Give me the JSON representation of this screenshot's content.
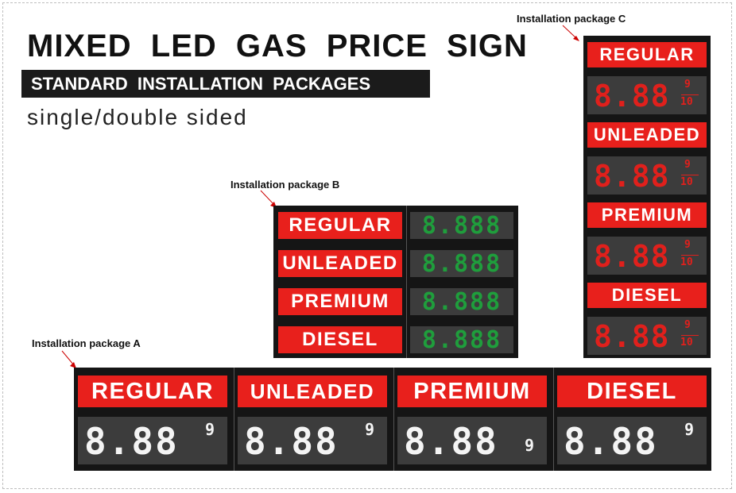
{
  "title": "MIXED LED GAS PRICE SIGN",
  "subtitle": "STANDARD INSTALLATION PACKAGES",
  "sided": "single/double sided",
  "packages": {
    "a": {
      "label": "Installation package A",
      "panels": [
        {
          "name": "REGULAR",
          "price": "8.88",
          "fraction": "9"
        },
        {
          "name": "UNLEADED",
          "price": "8.88",
          "fraction": "9"
        },
        {
          "name": "PREMIUM",
          "price": "8.88",
          "fraction": "9"
        },
        {
          "name": "DIESEL",
          "price": "8.88",
          "fraction": "9"
        }
      ],
      "digit_color": "#f4f4f4"
    },
    "b": {
      "label": "Installation package B",
      "rows": [
        {
          "name": "REGULAR",
          "price": "8.888"
        },
        {
          "name": "UNLEADED",
          "price": "8.888"
        },
        {
          "name": "PREMIUM",
          "price": "8.888"
        },
        {
          "name": "DIESEL",
          "price": "8.888"
        }
      ],
      "digit_color": "#1f9e3c"
    },
    "c": {
      "label": "Installation package C",
      "rows": [
        {
          "name": "REGULAR",
          "price": "8.88",
          "frac_num": "9",
          "frac_den": "10"
        },
        {
          "name": "UNLEADED",
          "price": "8.88",
          "frac_num": "9",
          "frac_den": "10"
        },
        {
          "name": "PREMIUM",
          "price": "8.88",
          "frac_num": "9",
          "frac_den": "10"
        },
        {
          "name": "DIESEL",
          "price": "8.88",
          "frac_num": "9",
          "frac_den": "10"
        }
      ],
      "digit_color": "#e0201c"
    }
  },
  "colors": {
    "label_red": "#e8201c",
    "panel_black": "#151515",
    "display_gray": "#3c3c3c"
  }
}
